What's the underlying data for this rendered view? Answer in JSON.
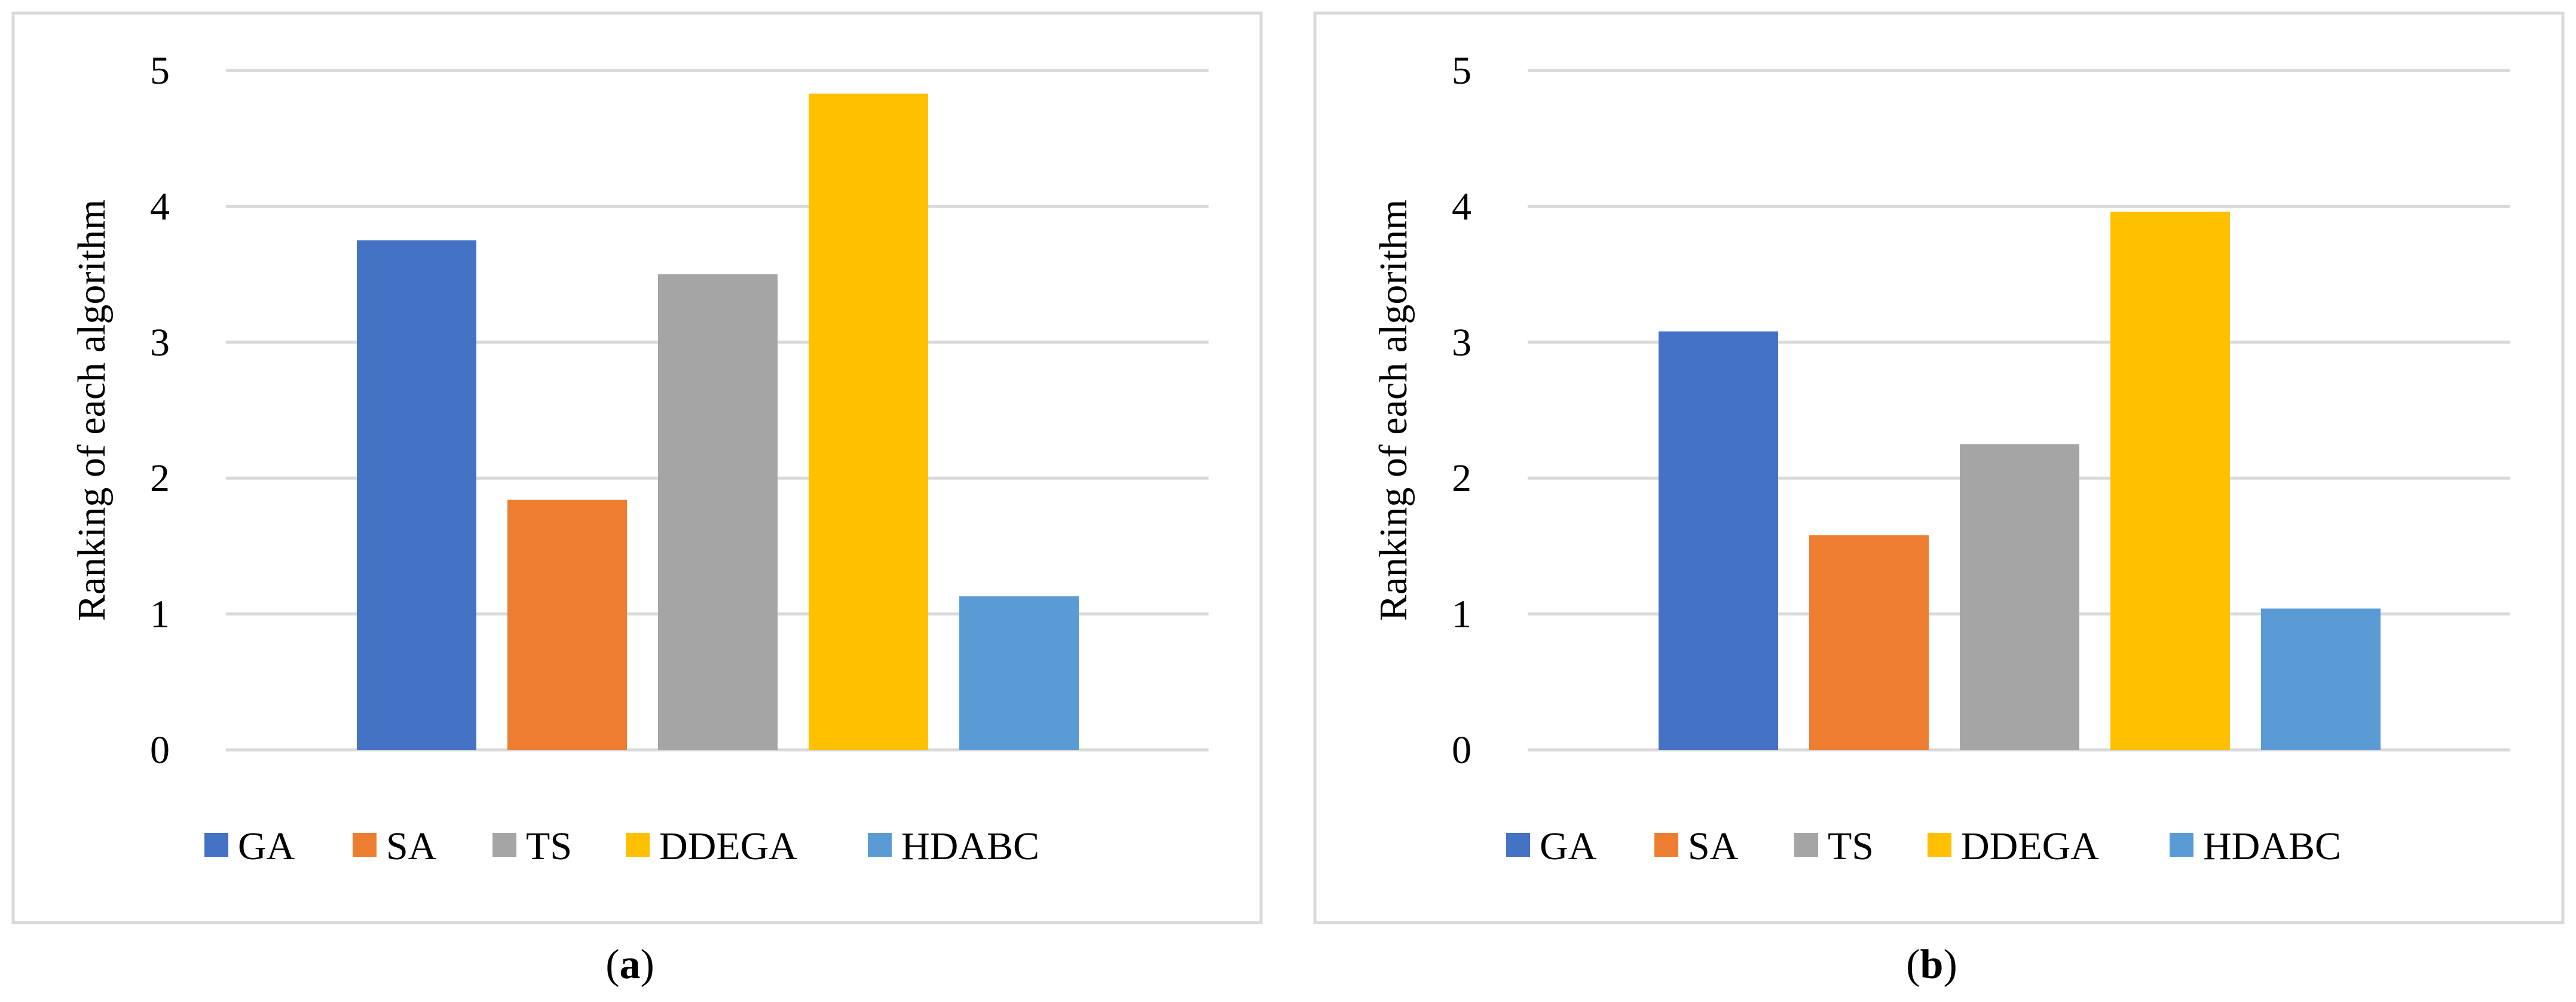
{
  "chart_data": [
    {
      "type": "bar",
      "caption": {
        "open": "(",
        "letter": "a",
        "close": ")"
      },
      "ylabel": "Ranking of each algorithm",
      "ylim": [
        0,
        5
      ],
      "yticks": [
        "0",
        "1",
        "2",
        "3",
        "4",
        "5"
      ],
      "grid": true,
      "legend_position": "bottom",
      "categories": [
        "GA",
        "SA",
        "TS",
        "DDEGA",
        "HDABC"
      ],
      "values": [
        3.75,
        1.84,
        3.5,
        4.83,
        1.13
      ],
      "colors": [
        "#4472C4",
        "#ED7D31",
        "#A5A5A5",
        "#FFC000",
        "#5B9BD5"
      ]
    },
    {
      "type": "bar",
      "caption": {
        "open": "(",
        "letter": "b",
        "close": ")"
      },
      "ylabel": "Ranking of each algorithm",
      "ylim": [
        0,
        5
      ],
      "yticks": [
        "0",
        "1",
        "2",
        "3",
        "4",
        "5"
      ],
      "grid": true,
      "legend_position": "bottom",
      "categories": [
        "GA",
        "SA",
        "TS",
        "DDEGA",
        "HDABC"
      ],
      "values": [
        3.08,
        1.58,
        2.25,
        3.96,
        1.04
      ],
      "colors": [
        "#4472C4",
        "#ED7D31",
        "#A5A5A5",
        "#FFC000",
        "#5B9BD5"
      ]
    }
  ]
}
